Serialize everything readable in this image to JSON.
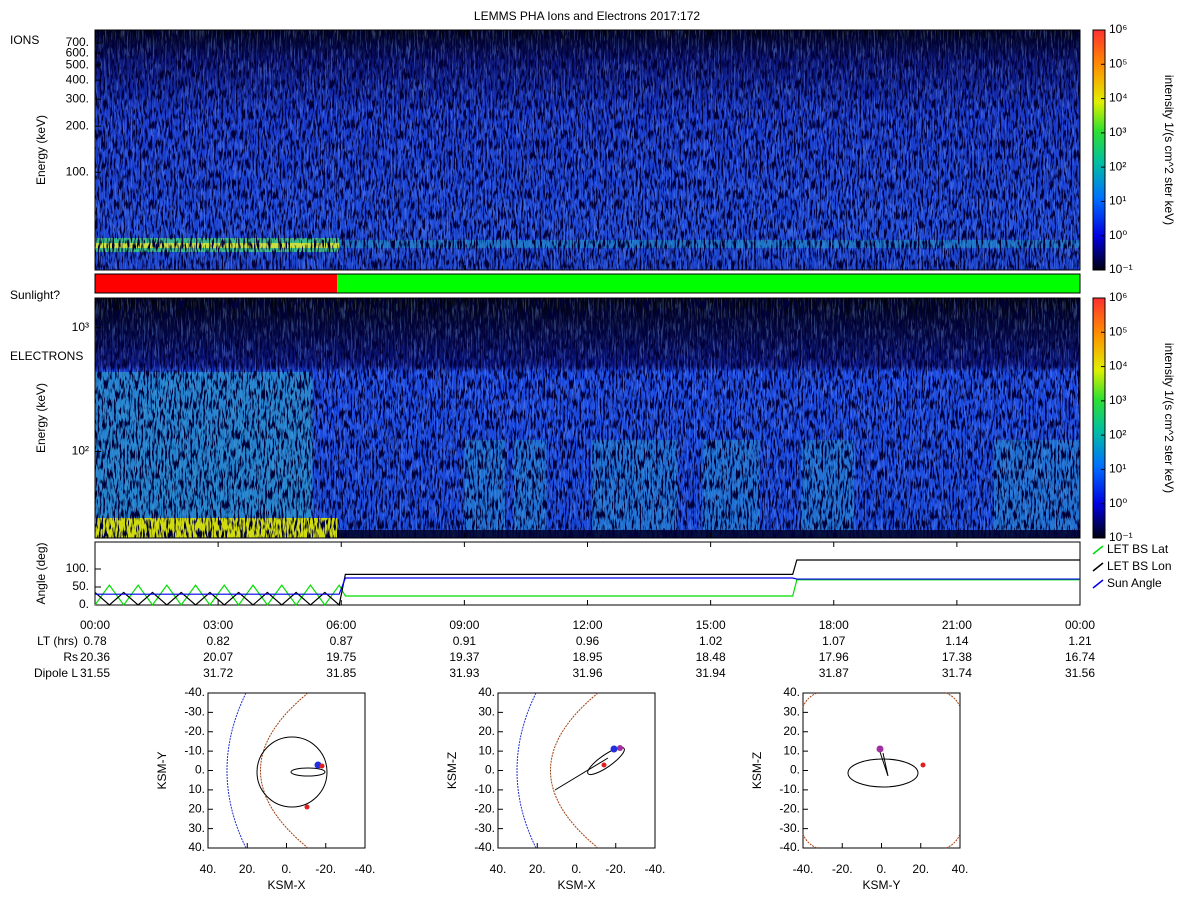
{
  "title": "LEMMS PHA Ions and Electrons  2017:172",
  "time_axis": {
    "xlim": [
      0,
      24
    ],
    "xticks": [
      {
        "value": 0,
        "label": "00:00"
      },
      {
        "value": 3,
        "label": "03:00"
      },
      {
        "value": 6,
        "label": "06:00"
      },
      {
        "value": 9,
        "label": "09:00"
      },
      {
        "value": 12,
        "label": "12:00"
      },
      {
        "value": 15,
        "label": "15:00"
      },
      {
        "value": 18,
        "label": "18:00"
      },
      {
        "value": 21,
        "label": "21:00"
      },
      {
        "value": 24,
        "label": "00:00"
      }
    ],
    "rows": [
      {
        "name": "LT (hrs)",
        "values": [
          0.78,
          0.82,
          0.87,
          0.91,
          0.96,
          1.02,
          1.07,
          1.14,
          1.21
        ]
      },
      {
        "name": "Rs",
        "values": [
          20.36,
          20.07,
          19.75,
          19.37,
          18.95,
          18.48,
          17.96,
          17.38,
          16.74
        ]
      },
      {
        "name": "Dipole L",
        "values": [
          31.55,
          31.72,
          31.85,
          31.93,
          31.96,
          31.94,
          31.87,
          31.74,
          31.56
        ]
      }
    ]
  },
  "chart_data": [
    {
      "type": "spectrogram",
      "label": "IONS",
      "ylabel": "Energy (keV)",
      "log_y": true,
      "ylim": [
        23,
        850
      ],
      "yticks": [
        {
          "value": 100,
          "label": "100."
        },
        {
          "value": 200,
          "label": "200."
        },
        {
          "value": 300,
          "label": "300."
        },
        {
          "value": 400,
          "label": "400."
        },
        {
          "value": 500,
          "label": "500."
        },
        {
          "value": 600,
          "label": "600."
        },
        {
          "value": 700,
          "label": "700."
        }
      ],
      "colorbar": {
        "label": "intensity 1/(s cm^2 ster keV)",
        "log": true,
        "zlim": [
          0.1,
          1000000
        ],
        "zticks": [
          {
            "value": 0.1,
            "label": "10⁻¹"
          },
          {
            "value": 1,
            "label": "10⁰"
          },
          {
            "value": 10,
            "label": "10¹"
          },
          {
            "value": 100,
            "label": "10²"
          },
          {
            "value": 1000,
            "label": "10³"
          },
          {
            "value": 10000,
            "label": "10⁴"
          },
          {
            "value": 100000,
            "label": "10⁵"
          },
          {
            "value": 1000000,
            "label": "10⁶"
          }
        ]
      }
    },
    {
      "type": "state",
      "label": "Sunlight?",
      "edges": [
        0,
        5.9,
        24
      ],
      "colors": [
        "#ff0000",
        "#00ff00"
      ]
    },
    {
      "type": "spectrogram",
      "label": "ELECTRONS",
      "ylabel": "Energy (keV)",
      "log_y": true,
      "ylim": [
        20,
        1740
      ],
      "yticks": [
        {
          "value": 100,
          "label": "10²"
        },
        {
          "value": 1000,
          "label": "10³"
        }
      ],
      "colorbar": {
        "label": "intensity 1/(s cm^2 ster keV)",
        "log": true,
        "zlim": [
          0.1,
          1000000
        ],
        "zticks": [
          {
            "value": 0.1,
            "label": "10⁻¹"
          },
          {
            "value": 1,
            "label": "10⁰"
          },
          {
            "value": 10,
            "label": "10¹"
          },
          {
            "value": 100,
            "label": "10²"
          },
          {
            "value": 1000,
            "label": "10³"
          },
          {
            "value": 10000,
            "label": "10⁴"
          },
          {
            "value": 100000,
            "label": "10⁵"
          },
          {
            "value": 1000000,
            "label": "10⁶"
          }
        ]
      }
    },
    {
      "type": "line",
      "ylabel": "Angle (deg)",
      "ylim": [
        0,
        175
      ],
      "yticks": [
        {
          "value": 0,
          "label": "0."
        },
        {
          "value": 50,
          "label": "50."
        },
        {
          "value": 100,
          "label": "100."
        }
      ],
      "x": [
        0,
        0.35,
        0.7,
        1.05,
        1.4,
        1.75,
        2.1,
        2.45,
        2.8,
        3.15,
        3.5,
        3.85,
        4.2,
        4.55,
        4.9,
        5.25,
        5.6,
        5.95,
        6.1,
        17.0,
        17.1,
        24
      ],
      "series": [
        {
          "name": "LET BS Lat",
          "color": "#00dd00",
          "values": [
            0,
            55,
            0,
            55,
            0,
            55,
            0,
            55,
            0,
            55,
            0,
            55,
            0,
            55,
            0,
            55,
            0,
            55,
            25,
            25,
            70,
            70
          ]
        },
        {
          "name": "LET BS Lon",
          "color": "#000000",
          "values": [
            35,
            0,
            35,
            0,
            35,
            0,
            35,
            0,
            35,
            0,
            35,
            0,
            35,
            0,
            35,
            0,
            35,
            0,
            85,
            85,
            125,
            125
          ]
        },
        {
          "name": "Sun Angle",
          "color": "#0000ee",
          "values": [
            30,
            30,
            30,
            30,
            30,
            30,
            30,
            30,
            30,
            30,
            30,
            30,
            30,
            30,
            30,
            30,
            30,
            30,
            75,
            75,
            72,
            72
          ]
        }
      ]
    },
    {
      "type": "orbit",
      "xlabel": "KSM-X",
      "ylabel": "KSM-Y",
      "xlim": [
        40,
        -40
      ],
      "ylim": [
        40,
        -40
      ],
      "xticks": [
        {
          "value": 40,
          "label": "40."
        },
        {
          "value": 20,
          "label": "20."
        },
        {
          "value": 0,
          "label": "0."
        },
        {
          "value": -20,
          "label": "-20."
        },
        {
          "value": -40,
          "label": "-40."
        }
      ],
      "yticks": [
        {
          "value": -40,
          "label": "-40."
        },
        {
          "value": -30,
          "label": "-30."
        },
        {
          "value": -20,
          "label": "-20."
        },
        {
          "value": -10,
          "label": "-10."
        },
        {
          "value": 0,
          "label": "0."
        },
        {
          "value": 10,
          "label": "10."
        },
        {
          "value": 20,
          "label": "20."
        },
        {
          "value": 30,
          "label": "30."
        },
        {
          "value": 40,
          "label": "40."
        }
      ]
    },
    {
      "type": "orbit",
      "xlabel": "KSM-X",
      "ylabel": "KSM-Z",
      "xlim": [
        40,
        -40
      ],
      "ylim": [
        -40,
        40
      ],
      "xticks": [
        {
          "value": 40,
          "label": "40."
        },
        {
          "value": 20,
          "label": "20."
        },
        {
          "value": 0,
          "label": "0."
        },
        {
          "value": -20,
          "label": "-20."
        },
        {
          "value": -40,
          "label": "-40."
        }
      ],
      "yticks": [
        {
          "value": 40,
          "label": "40."
        },
        {
          "value": 30,
          "label": "30."
        },
        {
          "value": 20,
          "label": "20."
        },
        {
          "value": 10,
          "label": "10."
        },
        {
          "value": 0,
          "label": "0."
        },
        {
          "value": -10,
          "label": "-10."
        },
        {
          "value": -20,
          "label": "-20."
        },
        {
          "value": -30,
          "label": "-30."
        },
        {
          "value": -40,
          "label": "-40."
        }
      ]
    },
    {
      "type": "orbit",
      "xlabel": "KSM-Y",
      "ylabel": "KSM-Z",
      "xlim": [
        -40,
        40
      ],
      "ylim": [
        -40,
        40
      ],
      "xticks": [
        {
          "value": -40,
          "label": "-40."
        },
        {
          "value": -20,
          "label": "-20."
        },
        {
          "value": 0,
          "label": "0."
        },
        {
          "value": 20,
          "label": "20."
        },
        {
          "value": 40,
          "label": "40."
        }
      ],
      "yticks": [
        {
          "value": 40,
          "label": "40."
        },
        {
          "value": 30,
          "label": "30."
        },
        {
          "value": 20,
          "label": "20."
        },
        {
          "value": 10,
          "label": "10."
        },
        {
          "value": 0,
          "label": "0."
        },
        {
          "value": -10,
          "label": "-10."
        },
        {
          "value": -20,
          "label": "-20."
        },
        {
          "value": -30,
          "label": "-30."
        },
        {
          "value": -40,
          "label": "-40."
        }
      ]
    }
  ]
}
